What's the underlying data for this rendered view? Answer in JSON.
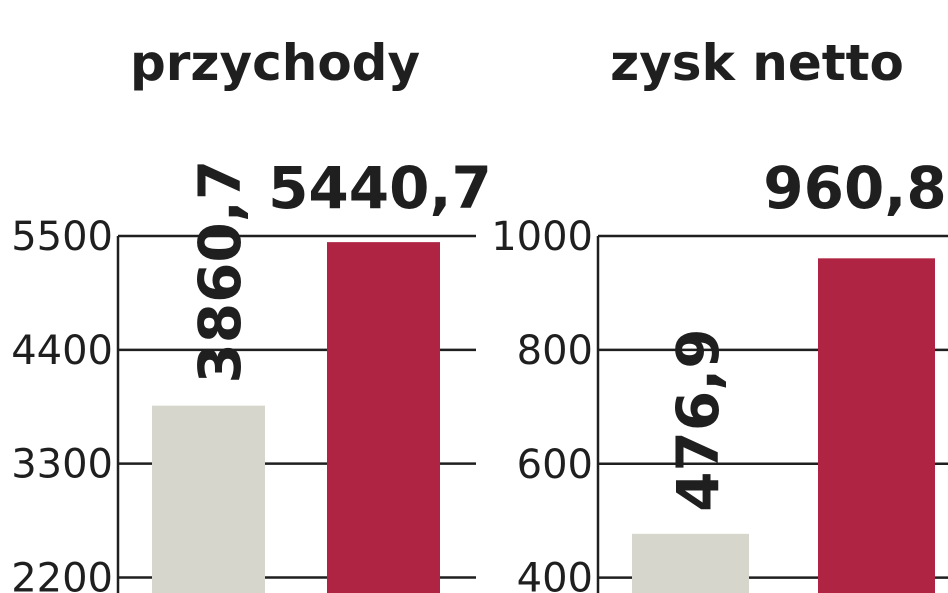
{
  "colors": {
    "prev": "#d6d6cc",
    "curr": "#b02443",
    "text": "#1f1f1f"
  },
  "chart_data": [
    {
      "type": "bar",
      "title": "przychody",
      "categories": [
        "",
        ""
      ],
      "values": [
        3860.7,
        5440.7
      ],
      "value_labels": [
        "3860,7",
        "5440,7"
      ],
      "yticks": [
        "2200",
        "3300",
        "4400",
        "5500"
      ],
      "ytick_values": [
        2200,
        3300,
        4400,
        5500
      ],
      "ylim": [
        2050,
        5500
      ],
      "grid": true
    },
    {
      "type": "bar",
      "title": "zysk netto",
      "categories": [
        "",
        ""
      ],
      "values": [
        476.9,
        960.8
      ],
      "value_labels": [
        "476,9",
        "960,8"
      ],
      "yticks": [
        "400",
        "600",
        "800",
        "1000"
      ],
      "ytick_values": [
        400,
        600,
        800,
        1000
      ],
      "ylim": [
        373,
        1000
      ],
      "grid": true
    }
  ]
}
